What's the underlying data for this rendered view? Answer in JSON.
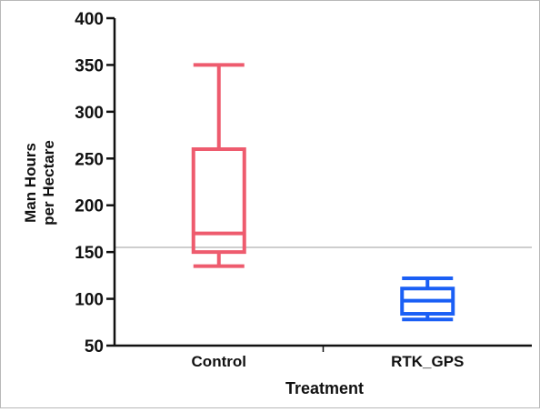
{
  "chart_data": {
    "type": "boxplot",
    "title": "",
    "xlabel": "Treatment",
    "ylabel_lines": [
      "Man Hours",
      "per Hectare"
    ],
    "ylim": [
      50,
      400
    ],
    "yticks": [
      50,
      100,
      150,
      200,
      250,
      300,
      350,
      400
    ],
    "reference_line": 155,
    "grid": false,
    "categories": [
      "Control",
      "RTK_GPS"
    ],
    "boxes": [
      {
        "category": "Control",
        "color": "#ee5b6e",
        "whisker_low": 135,
        "q1": 150,
        "median": 170,
        "q3": 260,
        "whisker_high": 350
      },
      {
        "category": "RTK_GPS",
        "color": "#1a5ff5",
        "whisker_low": 78,
        "q1": 84,
        "median": 98,
        "q3": 111,
        "whisker_high": 122
      }
    ],
    "colors": {
      "axis": "#111111",
      "reference_line": "#bdbdbd"
    }
  }
}
